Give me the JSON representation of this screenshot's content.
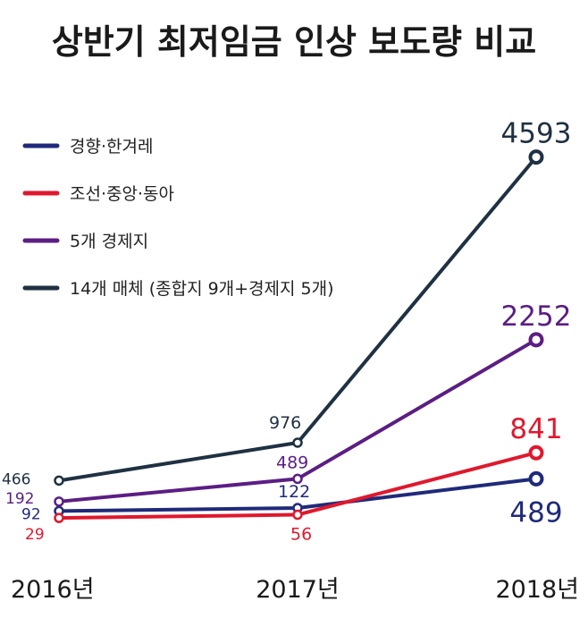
{
  "chart_data": {
    "type": "line",
    "title": "상반기 최저임금 인상 보도량 비교",
    "categories": [
      "2016년",
      "2017년",
      "2018년"
    ],
    "series": [
      {
        "name": "경향·한겨레",
        "color": "#1f2a7a",
        "values": [
          92,
          122,
          489
        ]
      },
      {
        "name": "조선·중앙·동아",
        "color": "#e0182d",
        "values": [
          29,
          56,
          841
        ]
      },
      {
        "name": "5개 경제지",
        "color": "#5b1e83",
        "values": [
          192,
          489,
          2252
        ]
      },
      {
        "name": "14개 매체 (종합지 9개+경제지 5개)",
        "color": "#1f3142",
        "values": [
          466,
          976,
          4593
        ]
      }
    ],
    "legend": "top-left",
    "grid": false
  }
}
